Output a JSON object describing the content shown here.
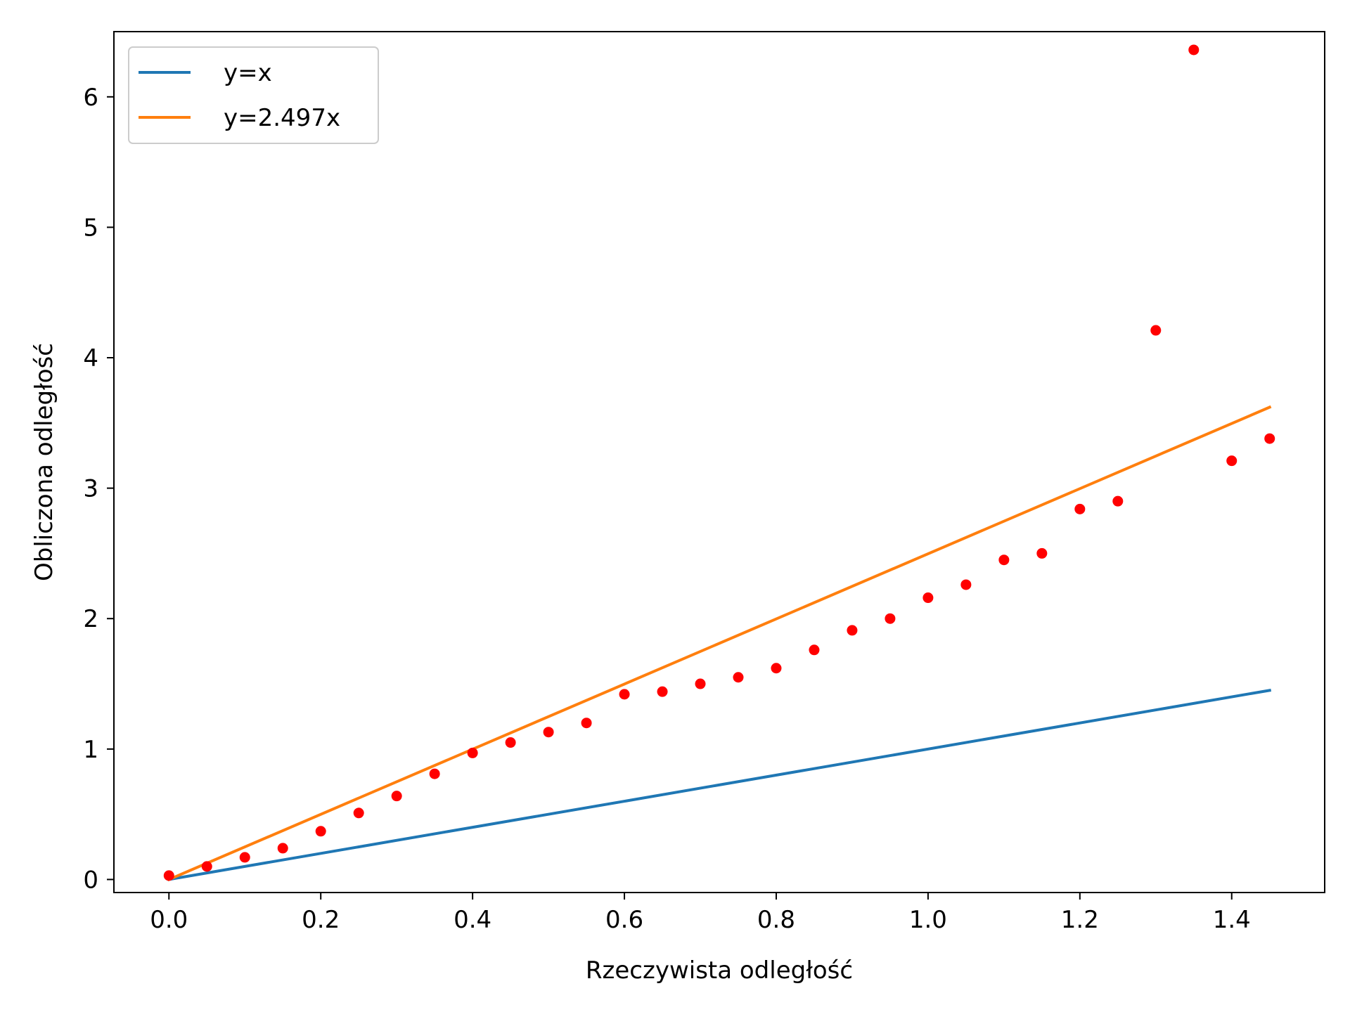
{
  "chart_data": {
    "type": "scatter",
    "title": "",
    "xlabel": "Rzeczywista odległość",
    "ylabel": "Obliczona odległość",
    "xlim": [
      -0.0725,
      1.5225
    ],
    "ylim": [
      -0.1,
      6.5
    ],
    "xticks": [
      0.0,
      0.2,
      0.4,
      0.6,
      0.8,
      1.0,
      1.2,
      1.4
    ],
    "xtick_labels": [
      "0.0",
      "0.2",
      "0.4",
      "0.6",
      "0.8",
      "1.0",
      "1.2",
      "1.4"
    ],
    "yticks": [
      0,
      1,
      2,
      3,
      4,
      5,
      6
    ],
    "ytick_labels": [
      "0",
      "1",
      "2",
      "3",
      "4",
      "5",
      "6"
    ],
    "grid": false,
    "legend_position": "top-left",
    "lines": [
      {
        "name": "y=x",
        "color": "#1f77b4",
        "slope": 1.0,
        "x": [
          0.0,
          1.45
        ]
      },
      {
        "name": "y=2.497x",
        "color": "#ff7f0e",
        "slope": 2.497,
        "x": [
          0.0,
          1.45
        ]
      }
    ],
    "points": {
      "color": "#ff0000",
      "x": [
        0.0,
        0.05,
        0.1,
        0.15,
        0.2,
        0.25,
        0.3,
        0.35,
        0.4,
        0.45,
        0.5,
        0.55,
        0.6,
        0.65,
        0.7,
        0.75,
        0.8,
        0.85,
        0.9,
        0.95,
        1.0,
        1.05,
        1.1,
        1.15,
        1.2,
        1.25,
        1.3,
        1.35,
        1.4,
        1.45
      ],
      "y": [
        0.03,
        0.1,
        0.17,
        0.24,
        0.37,
        0.51,
        0.64,
        0.81,
        0.97,
        1.05,
        1.13,
        1.2,
        1.42,
        1.44,
        1.5,
        1.55,
        1.62,
        1.76,
        1.91,
        2.0,
        2.16,
        2.26,
        2.45,
        2.5,
        2.84,
        2.9,
        4.21,
        6.36,
        3.21,
        3.38
      ]
    }
  }
}
